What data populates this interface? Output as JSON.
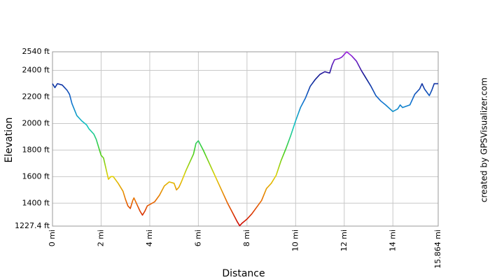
{
  "chart_data": {
    "type": "line",
    "xlabel": "Distance",
    "ylabel": "Elevation",
    "credit": "created by GPSVisualizer.com",
    "x": [
      0,
      0.1,
      0.2,
      0.4,
      0.6,
      0.7,
      0.8,
      1.0,
      1.2,
      1.4,
      1.5,
      1.6,
      1.7,
      1.8,
      1.9,
      2.0,
      2.1,
      2.2,
      2.3,
      2.4,
      2.5,
      2.7,
      2.9,
      3.0,
      3.1,
      3.2,
      3.3,
      3.35,
      3.5,
      3.6,
      3.7,
      3.8,
      3.9,
      4.0,
      4.2,
      4.4,
      4.6,
      4.8,
      5.0,
      5.1,
      5.2,
      5.3,
      5.5,
      5.7,
      5.8,
      5.9,
      6.0,
      6.2,
      6.4,
      6.6,
      6.8,
      7.0,
      7.2,
      7.4,
      7.6,
      7.7,
      7.8,
      8.0,
      8.2,
      8.4,
      8.6,
      8.8,
      9.0,
      9.2,
      9.4,
      9.6,
      9.8,
      10.0,
      10.2,
      10.4,
      10.6,
      10.8,
      11.0,
      11.2,
      11.4,
      11.5,
      11.6,
      11.8,
      11.9,
      12.0,
      12.1,
      12.3,
      12.5,
      12.7,
      12.9,
      13.1,
      13.3,
      13.5,
      13.7,
      14.0,
      14.2,
      14.3,
      14.4,
      14.7,
      14.9,
      15.1,
      15.2,
      15.3,
      15.5,
      15.6,
      15.7,
      15.864
    ],
    "values": [
      2300,
      2270,
      2300,
      2290,
      2250,
      2220,
      2150,
      2060,
      2020,
      1990,
      1960,
      1940,
      1920,
      1880,
      1820,
      1760,
      1740,
      1660,
      1580,
      1600,
      1600,
      1550,
      1490,
      1430,
      1380,
      1360,
      1420,
      1440,
      1380,
      1340,
      1310,
      1340,
      1380,
      1390,
      1410,
      1460,
      1530,
      1560,
      1550,
      1500,
      1520,
      1560,
      1650,
      1730,
      1770,
      1850,
      1870,
      1800,
      1720,
      1640,
      1560,
      1480,
      1400,
      1330,
      1260,
      1230,
      1250,
      1280,
      1320,
      1370,
      1420,
      1510,
      1550,
      1610,
      1720,
      1810,
      1910,
      2020,
      2120,
      2190,
      2280,
      2330,
      2370,
      2390,
      2380,
      2440,
      2480,
      2490,
      2500,
      2520,
      2540,
      2510,
      2470,
      2400,
      2340,
      2280,
      2210,
      2170,
      2140,
      2090,
      2110,
      2140,
      2120,
      2140,
      2220,
      2260,
      2300,
      2260,
      2210,
      2250,
      2300,
      2300
    ],
    "color_scale": [
      "#cc0000",
      "#e86a00",
      "#e0d000",
      "#40d020",
      "#10c8c0",
      "#1070d0",
      "#101890",
      "#a020e0"
    ],
    "xlim": [
      0,
      15.864
    ],
    "xticks": [
      {
        "value": 0,
        "label": "0 mi"
      },
      {
        "value": 2,
        "label": "2 mi"
      },
      {
        "value": 4,
        "label": "4 mi"
      },
      {
        "value": 6,
        "label": "6 mi"
      },
      {
        "value": 8,
        "label": "8 mi"
      },
      {
        "value": 10,
        "label": "10 mi"
      },
      {
        "value": 12,
        "label": "12 mi"
      },
      {
        "value": 14,
        "label": "14 mi"
      },
      {
        "value": 15.864,
        "label": "15.864 mi"
      }
    ],
    "ylim": [
      1227.4,
      2540
    ],
    "yticks": [
      {
        "value": 1227.4,
        "label": "1227.4 ft"
      },
      {
        "value": 1400,
        "label": "1400 ft"
      },
      {
        "value": 1600,
        "label": "1600 ft"
      },
      {
        "value": 1800,
        "label": "1800 ft"
      },
      {
        "value": 2000,
        "label": "2000 ft"
      },
      {
        "value": 2200,
        "label": "2200 ft"
      },
      {
        "value": 2400,
        "label": "2400 ft"
      },
      {
        "value": 2540,
        "label": "2540 ft"
      }
    ],
    "grid": true
  }
}
